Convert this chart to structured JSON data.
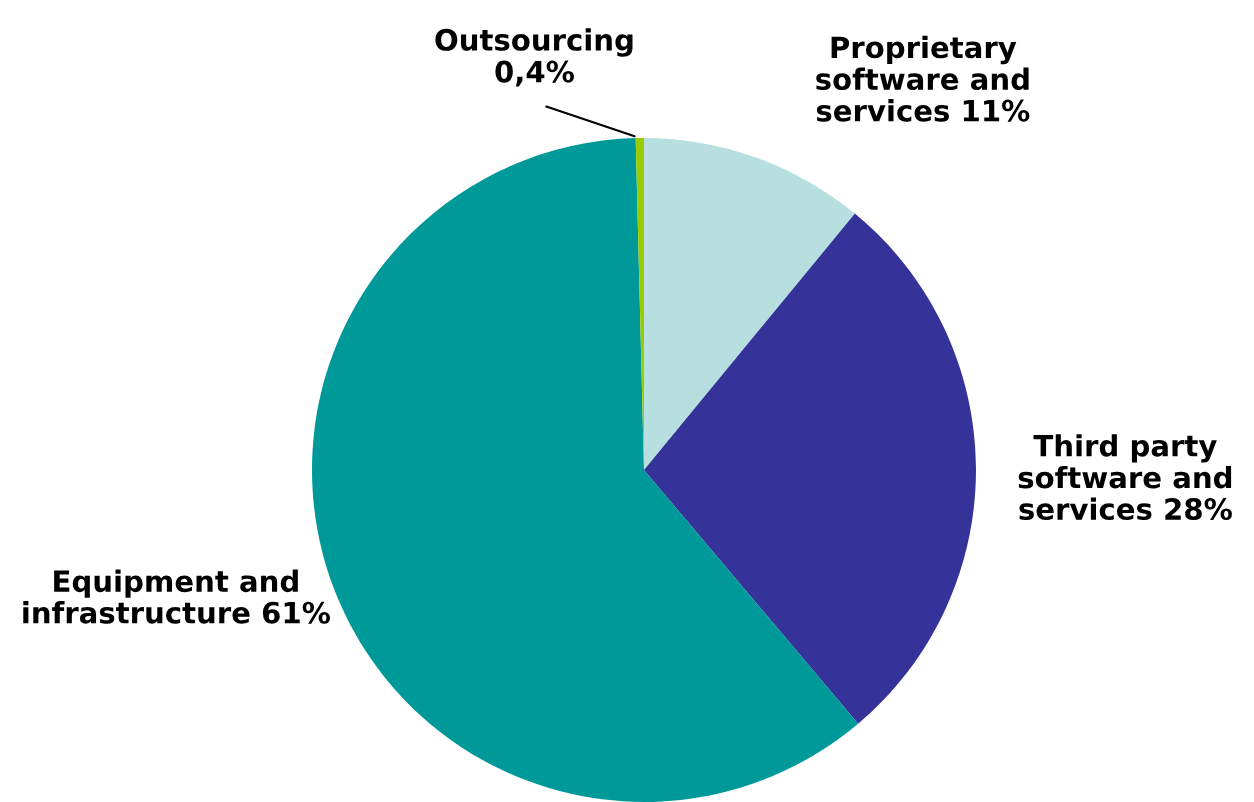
{
  "chart_data": {
    "type": "pie",
    "categories": [
      "Proprietary\nsoftware and\nservices",
      "Third party\nsoftware and\nservices",
      "Equipment and\ninfrastructure",
      "Outsourcing"
    ],
    "values": [
      11,
      28,
      61,
      0.4
    ],
    "value_labels": [
      "11%",
      "28%",
      "61%",
      "0,4%"
    ],
    "colors": [
      "#b8dfe0",
      "#35339a",
      "#009999",
      "#99cc00"
    ],
    "legend": false
  }
}
